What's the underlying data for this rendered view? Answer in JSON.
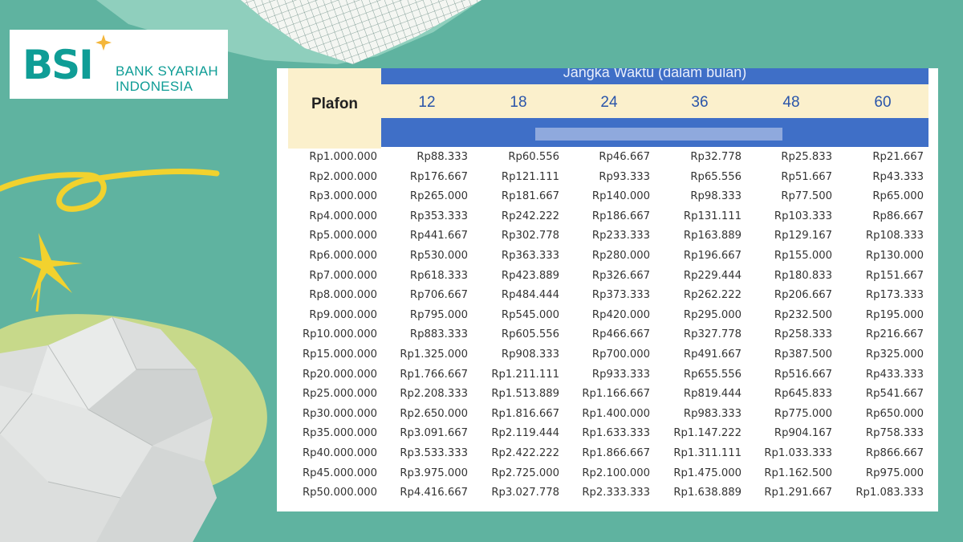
{
  "logo": {
    "mark": "BSI",
    "name_line1": "BANK SYARIAH",
    "name_line2": "INDONESIA",
    "brand_color": "#0f9d96",
    "star_color": "#f4b63a"
  },
  "table": {
    "header_title": "Jangka Waktu (dalam bulan)",
    "plafon_label": "Plafon",
    "months": [
      "12",
      "18",
      "24",
      "36",
      "48",
      "60"
    ],
    "header_blue": "#3f6fc7",
    "header_cream": "#fbf0cc",
    "rows": [
      [
        "Rp1.000.000",
        "Rp88.333",
        "Rp60.556",
        "Rp46.667",
        "Rp32.778",
        "Rp25.833",
        "Rp21.667"
      ],
      [
        "Rp2.000.000",
        "Rp176.667",
        "Rp121.111",
        "Rp93.333",
        "Rp65.556",
        "Rp51.667",
        "Rp43.333"
      ],
      [
        "Rp3.000.000",
        "Rp265.000",
        "Rp181.667",
        "Rp140.000",
        "Rp98.333",
        "Rp77.500",
        "Rp65.000"
      ],
      [
        "Rp4.000.000",
        "Rp353.333",
        "Rp242.222",
        "Rp186.667",
        "Rp131.111",
        "Rp103.333",
        "Rp86.667"
      ],
      [
        "Rp5.000.000",
        "Rp441.667",
        "Rp302.778",
        "Rp233.333",
        "Rp163.889",
        "Rp129.167",
        "Rp108.333"
      ],
      [
        "Rp6.000.000",
        "Rp530.000",
        "Rp363.333",
        "Rp280.000",
        "Rp196.667",
        "Rp155.000",
        "Rp130.000"
      ],
      [
        "Rp7.000.000",
        "Rp618.333",
        "Rp423.889",
        "Rp326.667",
        "Rp229.444",
        "Rp180.833",
        "Rp151.667"
      ],
      [
        "Rp8.000.000",
        "Rp706.667",
        "Rp484.444",
        "Rp373.333",
        "Rp262.222",
        "Rp206.667",
        "Rp173.333"
      ],
      [
        "Rp9.000.000",
        "Rp795.000",
        "Rp545.000",
        "Rp420.000",
        "Rp295.000",
        "Rp232.500",
        "Rp195.000"
      ],
      [
        "Rp10.000.000",
        "Rp883.333",
        "Rp605.556",
        "Rp466.667",
        "Rp327.778",
        "Rp258.333",
        "Rp216.667"
      ],
      [
        "Rp15.000.000",
        "Rp1.325.000",
        "Rp908.333",
        "Rp700.000",
        "Rp491.667",
        "Rp387.500",
        "Rp325.000"
      ],
      [
        "Rp20.000.000",
        "Rp1.766.667",
        "Rp1.211.111",
        "Rp933.333",
        "Rp655.556",
        "Rp516.667",
        "Rp433.333"
      ],
      [
        "Rp25.000.000",
        "Rp2.208.333",
        "Rp1.513.889",
        "Rp1.166.667",
        "Rp819.444",
        "Rp645.833",
        "Rp541.667"
      ],
      [
        "Rp30.000.000",
        "Rp2.650.000",
        "Rp1.816.667",
        "Rp1.400.000",
        "Rp983.333",
        "Rp775.000",
        "Rp650.000"
      ],
      [
        "Rp35.000.000",
        "Rp3.091.667",
        "Rp2.119.444",
        "Rp1.633.333",
        "Rp1.147.222",
        "Rp904.167",
        "Rp758.333"
      ],
      [
        "Rp40.000.000",
        "Rp3.533.333",
        "Rp2.422.222",
        "Rp1.866.667",
        "Rp1.311.111",
        "Rp1.033.333",
        "Rp866.667"
      ],
      [
        "Rp45.000.000",
        "Rp3.975.000",
        "Rp2.725.000",
        "Rp2.100.000",
        "Rp1.475.000",
        "Rp1.162.500",
        "Rp975.000"
      ],
      [
        "Rp50.000.000",
        "Rp4.416.667",
        "Rp3.027.778",
        "Rp2.333.333",
        "Rp1.638.889",
        "Rp1.291.667",
        "Rp1.083.333"
      ]
    ]
  },
  "decorations": {
    "background": "#5fb3a0",
    "accent_yellow": "#f2d22e",
    "accent_lime": "#c7d98a",
    "icons": [
      "yellow-squiggle-icon",
      "yellow-starburst-icon",
      "crumpled-paper-graphic",
      "grid-paper-graphic"
    ]
  }
}
